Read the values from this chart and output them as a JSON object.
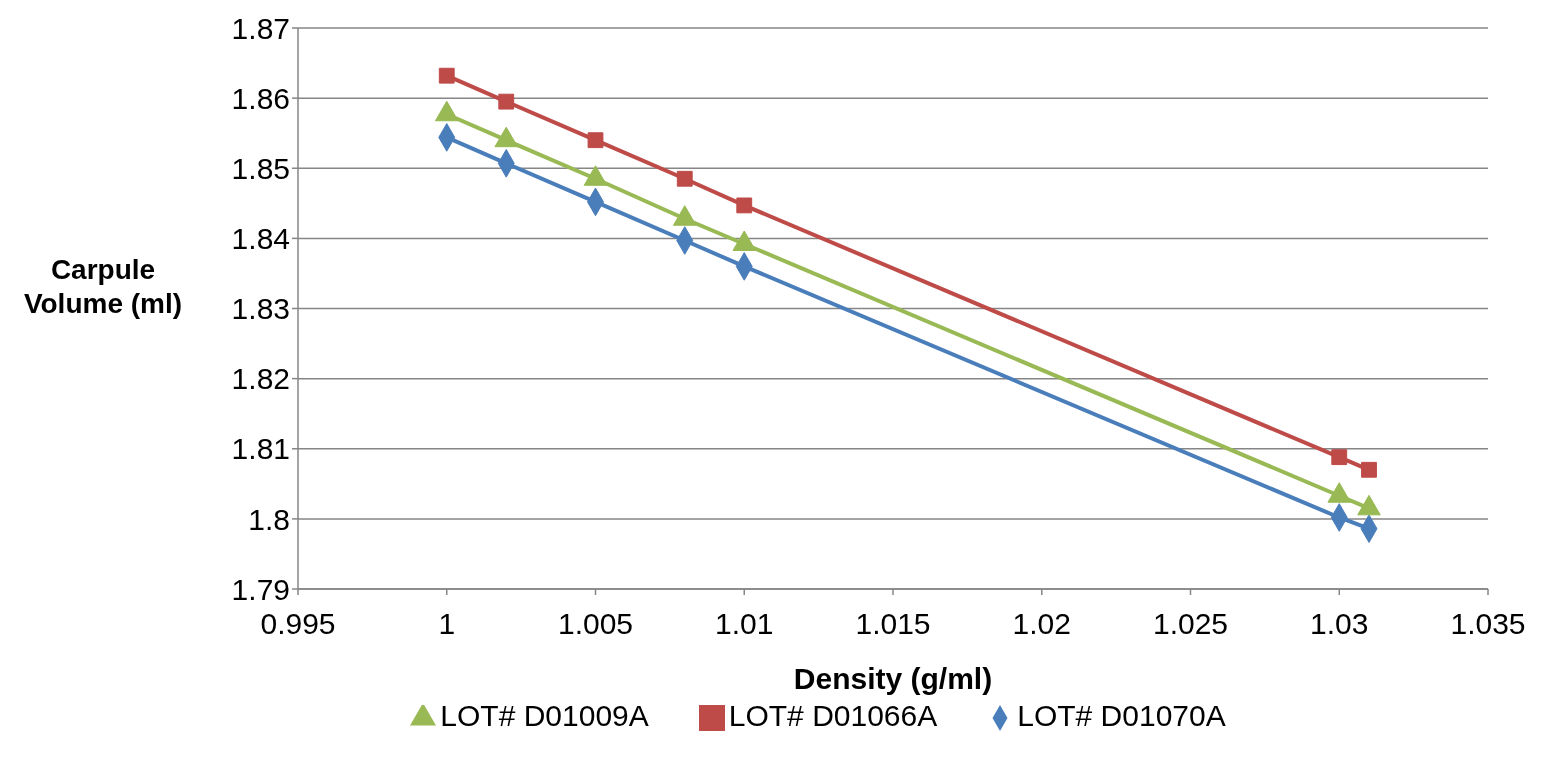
{
  "chart_data": {
    "type": "line",
    "xlabel": "Density (g/ml)",
    "ylabel": "Carpule Volume (ml)",
    "x": [
      1,
      1.002,
      1.005,
      1.008,
      1.01,
      1.03,
      1.031
    ],
    "series": [
      {
        "name": "LOT# D01070A",
        "color": "#4a7ebb",
        "marker": "diamond",
        "values": [
          1.8544,
          1.8507,
          1.8452,
          1.8397,
          1.836,
          1.8002,
          1.7986
        ]
      },
      {
        "name": "LOT# D01066A",
        "color": "#be4b48",
        "marker": "square",
        "values": [
          1.8632,
          1.8595,
          1.854,
          1.8485,
          1.8447,
          1.8088,
          1.807
        ]
      },
      {
        "name": "LOT# D01009A",
        "color": "#98b954",
        "marker": "triangle",
        "values": [
          1.8577,
          1.854,
          1.8485,
          1.8428,
          1.8392,
          1.8033,
          1.8015
        ]
      }
    ],
    "xlim": [
      0.995,
      1.035
    ],
    "xticks": [
      0.995,
      1,
      1.005,
      1.01,
      1.015,
      1.02,
      1.025,
      1.03,
      1.035
    ],
    "ylim": [
      1.79,
      1.87
    ],
    "yticks": [
      1.79,
      1.8,
      1.81,
      1.82,
      1.83,
      1.84,
      1.85,
      1.86,
      1.87
    ],
    "grid": "y",
    "legend": "bottom"
  }
}
